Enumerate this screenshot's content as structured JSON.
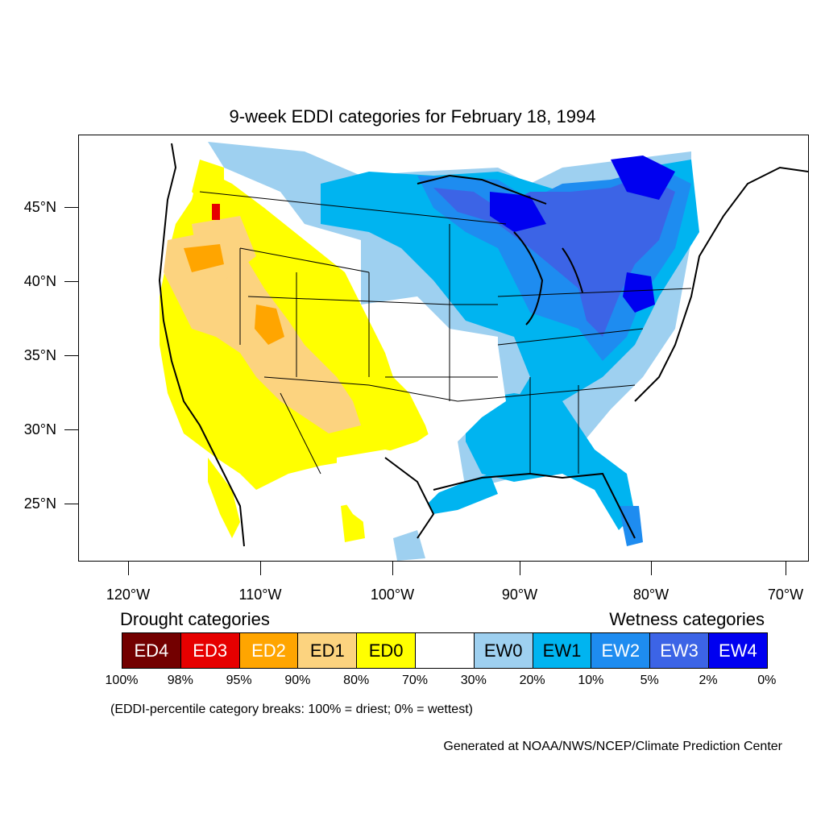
{
  "title": "9-week EDDI categories for February 18, 1994",
  "lat_labels": [
    "45°N",
    "40°N",
    "35°N",
    "30°N",
    "25°N"
  ],
  "lon_labels": [
    "120°W",
    "110°W",
    "100°W",
    "90°W",
    "80°W",
    "70°W"
  ],
  "legend": {
    "drought_header": "Drought categories",
    "wetness_header": "Wetness categories",
    "categories": [
      {
        "label": "ED4",
        "color": "#730000",
        "text_color": "#ffffff"
      },
      {
        "label": "ED3",
        "color": "#e60000",
        "text_color": "#ffffff"
      },
      {
        "label": "ED2",
        "color": "#ffa500",
        "text_color": "#ffffff"
      },
      {
        "label": "ED1",
        "color": "#fcd37f",
        "text_color": "#000000"
      },
      {
        "label": "ED0",
        "color": "#ffff00",
        "text_color": "#000000"
      },
      {
        "label": "",
        "color": "#ffffff",
        "text_color": "#000000"
      },
      {
        "label": "EW0",
        "color": "#9ed0f0",
        "text_color": "#000000"
      },
      {
        "label": "EW1",
        "color": "#00b4f0",
        "text_color": "#000000"
      },
      {
        "label": "EW2",
        "color": "#1e8cf0",
        "text_color": "#ffffff"
      },
      {
        "label": "EW3",
        "color": "#3c64e6",
        "text_color": "#ffffff"
      },
      {
        "label": "EW4",
        "color": "#0000f0",
        "text_color": "#ffffff"
      }
    ],
    "breaks": [
      "100%",
      "98%",
      "95%",
      "90%",
      "80%",
      "70%",
      "30%",
      "20%",
      "10%",
      "5%",
      "2%",
      "0%"
    ]
  },
  "note": "(EDDI-percentile category breaks: 100% = driest; 0% = wettest)",
  "credit": "Generated at NOAA/NWS/NCEP/Climate Prediction Center"
}
